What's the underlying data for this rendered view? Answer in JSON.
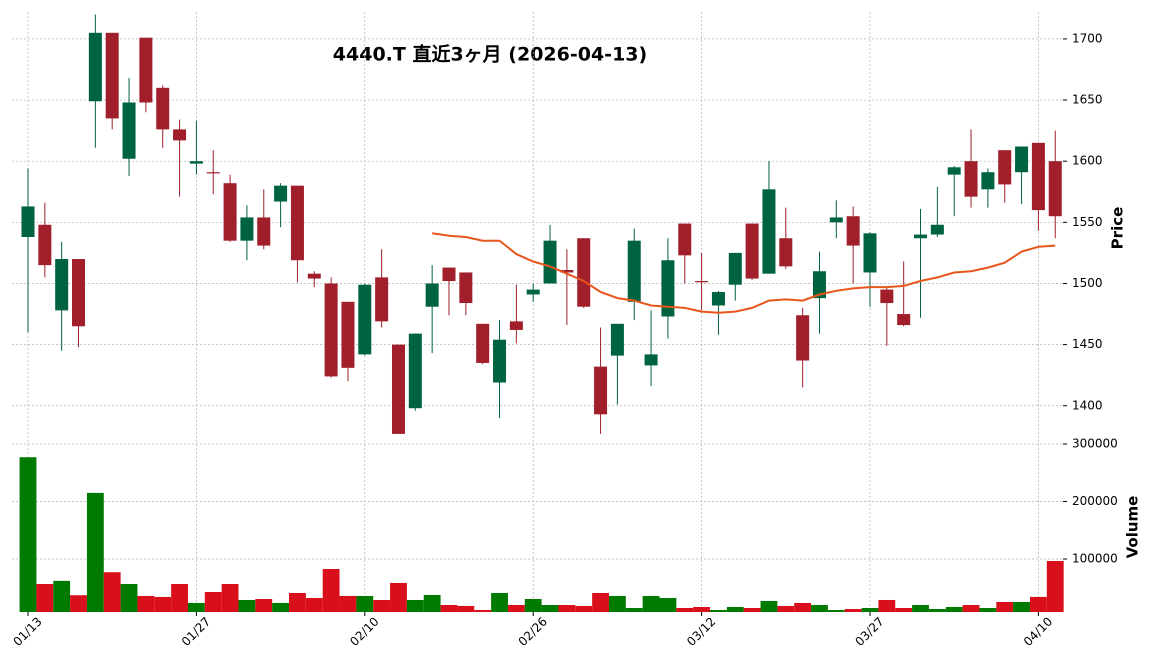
{
  "chart_data": {
    "type": "candlestick",
    "title": "4440.T  直近3ヶ月  (2026-04-13)",
    "categories": [
      "01/13",
      null,
      null,
      null,
      null,
      null,
      null,
      null,
      null,
      null,
      "01/27",
      null,
      null,
      null,
      null,
      null,
      null,
      null,
      null,
      null,
      "02/10",
      null,
      null,
      null,
      null,
      null,
      null,
      null,
      null,
      null,
      "02/26",
      null,
      null,
      null,
      null,
      null,
      null,
      null,
      null,
      null,
      "03/12",
      null,
      null,
      null,
      null,
      null,
      null,
      null,
      null,
      null,
      "03/27",
      null,
      null,
      null,
      null,
      null,
      null,
      null,
      null,
      null,
      "04/10",
      null
    ],
    "open": [
      1538,
      1548,
      1478,
      1520,
      1649,
      1705,
      1602,
      1701,
      1660,
      1626,
      1598,
      1591,
      1582,
      1535,
      1554,
      1567,
      1580,
      1508,
      1500,
      1485,
      1442,
      1505,
      1450,
      1398,
      1481,
      1513,
      1509,
      1467,
      1419,
      1469,
      1491,
      1500,
      1511,
      1537,
      1432,
      1441,
      1485,
      1433,
      1473,
      1549,
      1502,
      1482,
      1499,
      1549,
      1508,
      1537,
      1474,
      1488,
      1550,
      1555,
      1509,
      1495,
      1475,
      1537,
      1540,
      1589,
      1600,
      1577,
      1609,
      1591,
      1615,
      1600
    ],
    "high": [
      1594,
      1566,
      1534,
      1520,
      1720,
      1705,
      1668,
      1701,
      1662,
      1634,
      1633,
      1609,
      1589,
      1564,
      1577,
      1582,
      1580,
      1510,
      1505,
      1485,
      1500,
      1528,
      1450,
      1459,
      1515,
      1513,
      1509,
      1467,
      1470,
      1499,
      1500,
      1548,
      1528,
      1537,
      1464,
      1467,
      1545,
      1478,
      1537,
      1549,
      1525,
      1494,
      1525,
      1549,
      1600,
      1562,
      1480,
      1526,
      1568,
      1563,
      1542,
      1497,
      1518,
      1561,
      1579,
      1596,
      1626,
      1594,
      1609,
      1612,
      1615,
      1625
    ],
    "low": [
      1460,
      1505,
      1445,
      1448,
      1611,
      1626,
      1588,
      1640,
      1611,
      1571,
      1589,
      1573,
      1534,
      1519,
      1528,
      1546,
      1501,
      1497,
      1423,
      1420,
      1441,
      1464,
      1377,
      1396,
      1443,
      1474,
      1474,
      1434,
      1390,
      1451,
      1485,
      1500,
      1466,
      1480,
      1377,
      1401,
      1470,
      1416,
      1455,
      1500,
      1478,
      1458,
      1486,
      1503,
      1508,
      1512,
      1415,
      1459,
      1537,
      1500,
      1481,
      1449,
      1465,
      1472,
      1538,
      1555,
      1562,
      1562,
      1566,
      1565,
      1543,
      1537
    ],
    "close": [
      1563,
      1515,
      1520,
      1465,
      1705,
      1635,
      1648,
      1648,
      1626,
      1617,
      1600,
      1590,
      1535,
      1554,
      1531,
      1580,
      1519,
      1504,
      1424,
      1431,
      1499,
      1469,
      1377,
      1459,
      1500,
      1502,
      1484,
      1435,
      1454,
      1462,
      1495,
      1535,
      1509,
      1481,
      1393,
      1467,
      1535,
      1442,
      1519,
      1523,
      1501,
      1493,
      1525,
      1504,
      1577,
      1514,
      1437,
      1510,
      1554,
      1531,
      1541,
      1484,
      1466,
      1540,
      1548,
      1595,
      1571,
      1591,
      1581,
      1612,
      1560,
      1555
    ],
    "up_color": "#006340",
    "down_color": "#a01f2b",
    "ylabel": "Price",
    "ylim": [
      1372,
      1722
    ],
    "yticks": [
      1400,
      1450,
      1500,
      1550,
      1600,
      1650,
      1700
    ],
    "ma": {
      "color": "#e8561c",
      "values": [
        null,
        null,
        null,
        null,
        null,
        null,
        null,
        null,
        null,
        null,
        null,
        null,
        null,
        null,
        null,
        null,
        null,
        null,
        null,
        null,
        null,
        null,
        null,
        null,
        1541,
        1539,
        1538,
        1535,
        1535,
        1524,
        1518,
        1514,
        1508,
        1502,
        1493,
        1488,
        1486,
        1482,
        1481,
        1480,
        1477,
        1476,
        1477,
        1480,
        1486,
        1487,
        1486,
        1491,
        1494,
        1496,
        1497,
        1497,
        1498,
        1502,
        1505,
        1509,
        1510,
        1513,
        1517,
        1526,
        1530,
        1531
      ]
    },
    "volume": {
      "ylabel": "Volume",
      "ylim": [
        7800,
        307000
      ],
      "yticks": [
        100000,
        200000,
        300000
      ],
      "up_color": "#007a00",
      "down_color": "#d9101b",
      "values": [
        277000,
        56500,
        62000,
        37000,
        215000,
        77000,
        56500,
        35700,
        34000,
        56500,
        23500,
        42600,
        56500,
        28700,
        30400,
        23500,
        40900,
        32200,
        82600,
        35700,
        35700,
        28700,
        58300,
        28700,
        37400,
        20000,
        18300,
        11300,
        40900,
        20000,
        30400,
        20000,
        20000,
        18300,
        40900,
        35700,
        14800,
        35700,
        32200,
        14800,
        16500,
        11300,
        16500,
        14800,
        27000,
        18300,
        23500,
        20000,
        11300,
        13000,
        14800,
        28700,
        14800,
        20000,
        13000,
        16500,
        20000,
        14800,
        25200,
        25200,
        34000,
        96500
      ]
    },
    "grid": true
  }
}
